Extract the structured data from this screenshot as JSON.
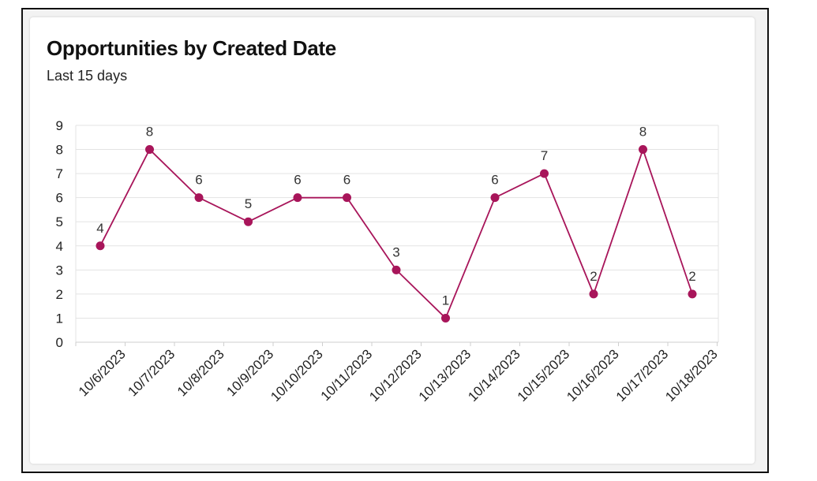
{
  "chart_data": {
    "type": "line",
    "title": "Opportunities by Created Date",
    "subtitle": "Last 15 days",
    "xlabel": "",
    "ylabel": "",
    "categories": [
      "10/6/2023",
      "10/7/2023",
      "10/8/2023",
      "10/9/2023",
      "10/10/2023",
      "10/11/2023",
      "10/12/2023",
      "10/13/2023",
      "10/14/2023",
      "10/15/2023",
      "10/16/2023",
      "10/17/2023",
      "10/18/2023"
    ],
    "x_points": [
      "",
      "",
      "",
      "",
      "",
      "",
      "",
      "",
      "",
      "",
      "",
      "",
      ""
    ],
    "values": [
      4,
      8,
      6,
      5,
      6,
      6,
      3,
      1,
      6,
      7,
      2,
      8,
      2
    ],
    "ylim": [
      0,
      9
    ],
    "yticks": [
      0,
      1,
      2,
      3,
      4,
      5,
      6,
      7,
      8,
      9
    ],
    "grid": true,
    "legend": "none",
    "colors": {
      "series": "#a8155a",
      "grid": "#e3e3e3",
      "axis": "#cfcfcf"
    }
  }
}
